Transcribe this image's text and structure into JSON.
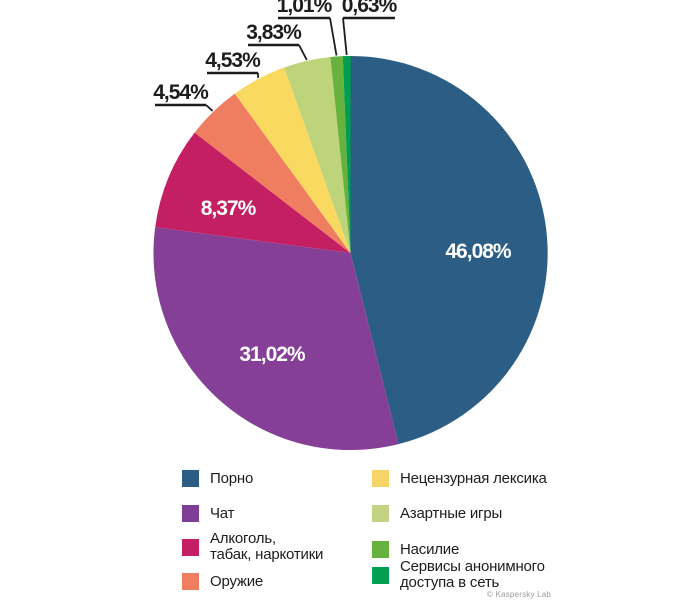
{
  "chart_data": {
    "type": "pie",
    "title": "",
    "unit": "%",
    "decimal_separator": ",",
    "direction": "clockwise",
    "start_angle_deg": 0,
    "legend_position": "bottom",
    "categories": [
      "Порно",
      "Чат",
      "Алкоголь, табак, наркотики",
      "Оружие",
      "Нецензурная лексика",
      "Азартные игры",
      "Насилие",
      "Сервисы анонимного доступа в сеть"
    ],
    "values": [
      46.08,
      31.02,
      8.37,
      4.54,
      4.53,
      3.83,
      1.01,
      0.63
    ],
    "value_labels": [
      "46,08%",
      "31,02%",
      "8,37%",
      "4,54%",
      "4,53%",
      "3,83%",
      "1,01%",
      "0,63%"
    ],
    "colors": [
      "#2b5d85",
      "#853f96",
      "#c51f63",
      "#ef7e60",
      "#fad961",
      "#bdd47b",
      "#67b23e",
      "#009e4f"
    ]
  },
  "legend": {
    "columns": [
      {
        "items": [
          {
            "label": "Порно",
            "color": "#2b5d85"
          },
          {
            "label": "Чат",
            "color": "#7e3d96"
          },
          {
            "label": "Алкоголь,\nтабак, наркотики",
            "color": "#c51f63"
          },
          {
            "label": "Оружие",
            "color": "#ef7e60"
          }
        ]
      },
      {
        "items": [
          {
            "label": "Нецензурная лексика",
            "color": "#f5d567"
          },
          {
            "label": "Азартные игры",
            "color": "#c2d385"
          },
          {
            "label": "Насилие",
            "color": "#67b23e"
          },
          {
            "label": "Сервисы анонимного\nдоступа в сеть",
            "color": "#009e4f"
          }
        ]
      }
    ]
  },
  "footer": {
    "copyright": "© Kaspersky Lab"
  }
}
